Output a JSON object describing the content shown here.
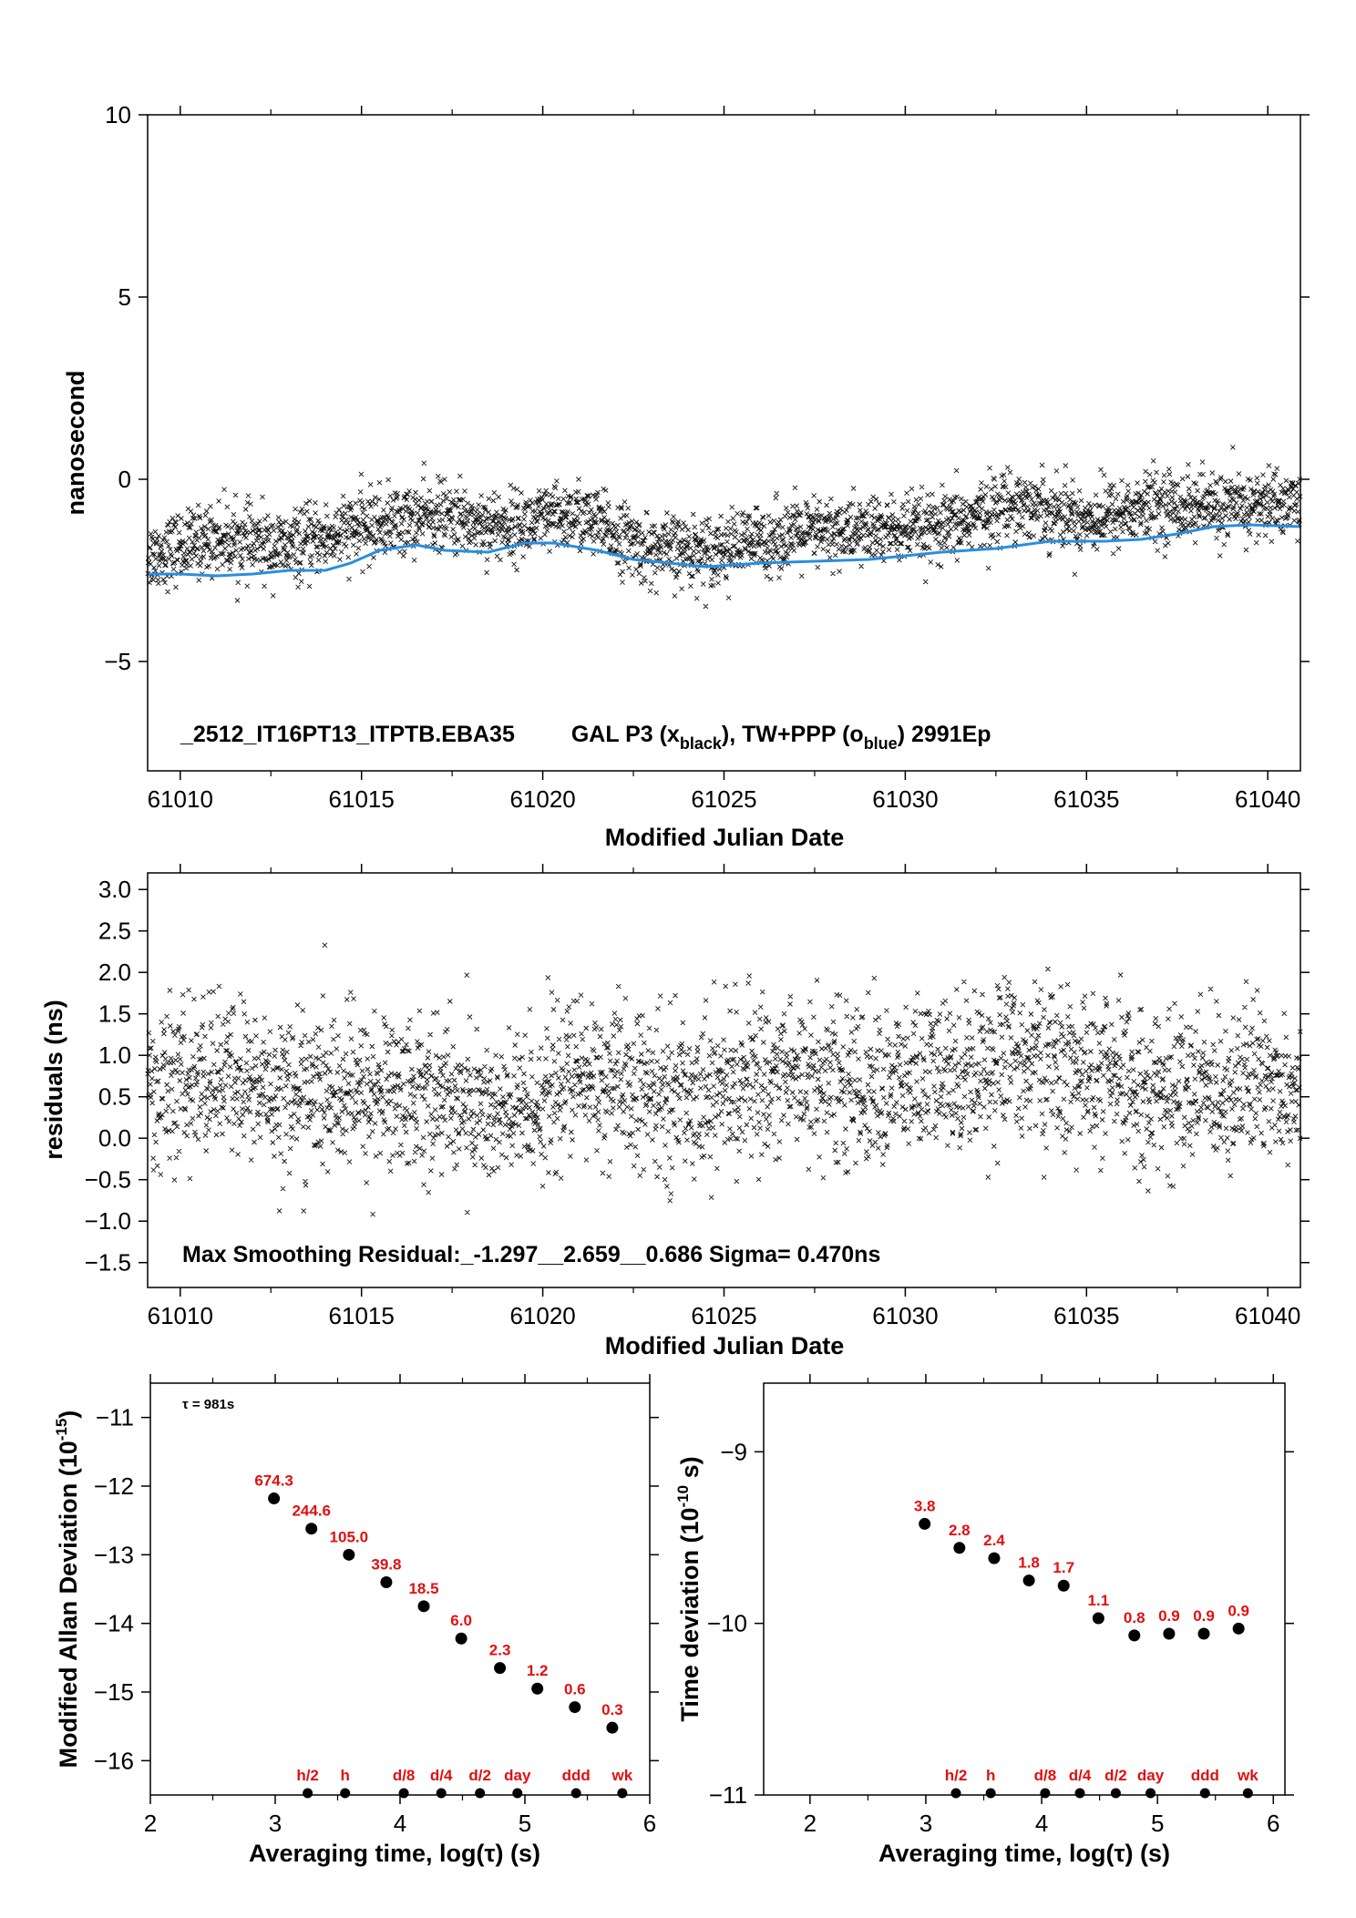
{
  "chart_data": [
    {
      "id": "time_series",
      "type": "scatter",
      "xlabel": "Modified Julian Date",
      "ylabel": "nanosecond",
      "xlim": [
        61009.1,
        61040.9
      ],
      "ylim": [
        -8.0,
        10.0
      ],
      "yticks": [
        10,
        5,
        0,
        -5
      ],
      "xticks": [
        61010,
        61015,
        61020,
        61025,
        61030,
        61035,
        61040
      ],
      "tick_labels": {
        "y": [
          "10",
          "5",
          "0",
          "−5"
        ],
        "x": [
          "61010",
          "61015",
          "61020",
          "61025",
          "61030",
          "61035",
          "61040"
        ]
      },
      "caption": {
        "id_text": "_2512_IT16PT13_ITPTB.EBA35",
        "series_a_text": "GAL P3 (x",
        "series_a_sub": "black",
        "series_b_text": "),  TW+PPP (o",
        "series_b_sub": "blue",
        "epoch_text": ")  2991Ep"
      },
      "series": [
        {
          "marker": "x",
          "color": "#111111",
          "count": 2991,
          "trend_knots": [
            [
              61009.1,
              -2.1
            ],
            [
              61011,
              -1.6
            ],
            [
              61013,
              -1.9
            ],
            [
              61015,
              -1.3
            ],
            [
              61017,
              -1.0
            ],
            [
              61019,
              -1.3
            ],
            [
              61021,
              -1.0
            ],
            [
              61023,
              -2.0
            ],
            [
              61025,
              -1.9
            ],
            [
              61027,
              -1.5
            ],
            [
              61029,
              -1.4
            ],
            [
              61031,
              -1.4
            ],
            [
              61033,
              -0.6
            ],
            [
              61035,
              -1.1
            ],
            [
              61037,
              -0.7
            ],
            [
              61039,
              -0.8
            ],
            [
              61040.9,
              -0.6
            ]
          ],
          "spread": 0.47
        },
        {
          "marker": "line",
          "color": "#2a8ee0",
          "points": [
            [
              61009.1,
              -2.6
            ],
            [
              61010,
              -2.6
            ],
            [
              61011,
              -2.65
            ],
            [
              61012,
              -2.6
            ],
            [
              61013,
              -2.5
            ],
            [
              61014,
              -2.5
            ],
            [
              61014.7,
              -2.3
            ],
            [
              61015.5,
              -1.95
            ],
            [
              61016.5,
              -1.8
            ],
            [
              61017.3,
              -1.95
            ],
            [
              61018.5,
              -2.0
            ],
            [
              61019.5,
              -1.75
            ],
            [
              61020.3,
              -1.75
            ],
            [
              61021.5,
              -1.95
            ],
            [
              61022.5,
              -2.2
            ],
            [
              61023.5,
              -2.3
            ],
            [
              61024.5,
              -2.4
            ],
            [
              61026,
              -2.3
            ],
            [
              61027.5,
              -2.25
            ],
            [
              61029,
              -2.2
            ],
            [
              61030,
              -2.1
            ],
            [
              61031,
              -2.0
            ],
            [
              61032.5,
              -1.9
            ],
            [
              61034,
              -1.7
            ],
            [
              61035.5,
              -1.7
            ],
            [
              61036.5,
              -1.65
            ],
            [
              61037.5,
              -1.5
            ],
            [
              61038.5,
              -1.3
            ],
            [
              61039.5,
              -1.25
            ],
            [
              61040.9,
              -1.3
            ]
          ]
        }
      ]
    },
    {
      "id": "residuals",
      "type": "scatter",
      "xlabel": "Modified Julian Date",
      "ylabel": "residuals (ns)",
      "xlim": [
        61009.1,
        61040.9
      ],
      "ylim": [
        -1.8,
        3.2
      ],
      "yticks": [
        3.0,
        2.5,
        2.0,
        1.5,
        1.0,
        0.5,
        0.0,
        -0.5,
        -1.0,
        -1.5
      ],
      "xticks": [
        61010,
        61015,
        61020,
        61025,
        61030,
        61035,
        61040
      ],
      "tick_labels": {
        "y": [
          "3.0",
          "2.5",
          "2.0",
          "1.5",
          "1.0",
          "0.5",
          "0.0",
          "−0.5",
          "−1.0",
          "−1.5"
        ],
        "x": [
          "61010",
          "61015",
          "61020",
          "61025",
          "61030",
          "61035",
          "61040"
        ]
      },
      "caption": "Max Smoothing Residual:_-1.297__2.659__0.686  Sigma= 0.470ns",
      "series": [
        {
          "marker": "x",
          "color": "#111111",
          "count": 2991,
          "trend_knots": [
            [
              61009.1,
              0.55
            ],
            [
              61011,
              0.75
            ],
            [
              61013,
              0.55
            ],
            [
              61015,
              0.55
            ],
            [
              61017,
              0.55
            ],
            [
              61019,
              0.25
            ],
            [
              61021,
              0.75
            ],
            [
              61023,
              0.5
            ],
            [
              61025,
              0.6
            ],
            [
              61027,
              0.8
            ],
            [
              61029,
              0.6
            ],
            [
              61031,
              0.75
            ],
            [
              61033,
              1.0
            ],
            [
              61035,
              0.75
            ],
            [
              61037,
              0.55
            ],
            [
              61039,
              0.65
            ],
            [
              61040.9,
              0.7
            ]
          ],
          "spread": 0.47,
          "max": 2.659,
          "min": -1.297,
          "mean": 0.686
        }
      ]
    },
    {
      "id": "mdev",
      "type": "scatter",
      "xlabel": "Averaging time, log(τ) (s)",
      "ylabel": "Modified Allan Deviation (10",
      "ylabel_exp": "-15",
      "ylabel_end": ")",
      "xlim": [
        2,
        6
      ],
      "ylim": [
        -16.5,
        -10.5
      ],
      "xticks": [
        2,
        3,
        4,
        5,
        6
      ],
      "yticks": [
        -11,
        -12,
        -13,
        -14,
        -15,
        -16
      ],
      "tick_labels": {
        "x": [
          "2",
          "3",
          "4",
          "5",
          "6"
        ],
        "y": [
          "−11",
          "−12",
          "−13",
          "−14",
          "−15",
          "−16"
        ]
      },
      "note": "τ = 981s",
      "points": [
        {
          "x": 2.99,
          "y": -12.18,
          "label": "674.3"
        },
        {
          "x": 3.29,
          "y": -12.62,
          "label": "244.6"
        },
        {
          "x": 3.59,
          "y": -13.0,
          "label": "105.0"
        },
        {
          "x": 3.89,
          "y": -13.4,
          "label": "39.8"
        },
        {
          "x": 4.19,
          "y": -13.75,
          "label": "18.5"
        },
        {
          "x": 4.49,
          "y": -14.22,
          "label": "6.0"
        },
        {
          "x": 4.8,
          "y": -14.65,
          "label": "2.3"
        },
        {
          "x": 5.1,
          "y": -14.95,
          "label": "1.2"
        },
        {
          "x": 5.4,
          "y": -15.22,
          "label": "0.6"
        },
        {
          "x": 5.7,
          "y": -15.52,
          "label": "0.3"
        }
      ],
      "markers": [
        {
          "x": 3.26,
          "label": "h/2"
        },
        {
          "x": 3.56,
          "label": "h"
        },
        {
          "x": 4.03,
          "label": "d/8"
        },
        {
          "x": 4.33,
          "label": "d/4"
        },
        {
          "x": 4.64,
          "label": "d/2"
        },
        {
          "x": 4.94,
          "label": "day"
        },
        {
          "x": 5.41,
          "label": "ddd"
        },
        {
          "x": 5.78,
          "label": "wk"
        }
      ]
    },
    {
      "id": "tdev",
      "type": "scatter",
      "xlabel": "Averaging time, log(τ) (s)",
      "ylabel": "Time deviation (10",
      "ylabel_exp": "-10",
      "ylabel_end": " s)",
      "xlim": [
        1.6,
        6.1
      ],
      "ylim": [
        -11.0,
        -8.6
      ],
      "xticks": [
        2,
        3,
        4,
        5,
        6
      ],
      "yticks": [
        -9,
        -10,
        -11
      ],
      "tick_labels": {
        "x": [
          "2",
          "3",
          "4",
          "5",
          "6"
        ],
        "y": [
          "−9",
          "−10",
          "−11"
        ]
      },
      "points": [
        {
          "x": 2.99,
          "y": -9.42,
          "label": "3.8"
        },
        {
          "x": 3.29,
          "y": -9.56,
          "label": "2.8"
        },
        {
          "x": 3.59,
          "y": -9.62,
          "label": "2.4"
        },
        {
          "x": 3.89,
          "y": -9.75,
          "label": "1.8"
        },
        {
          "x": 4.19,
          "y": -9.78,
          "label": "1.7"
        },
        {
          "x": 4.49,
          "y": -9.97,
          "label": "1.1"
        },
        {
          "x": 4.8,
          "y": -10.07,
          "label": "0.8"
        },
        {
          "x": 5.1,
          "y": -10.06,
          "label": "0.9"
        },
        {
          "x": 5.4,
          "y": -10.06,
          "label": "0.9"
        },
        {
          "x": 5.7,
          "y": -10.03,
          "label": "0.9"
        }
      ],
      "markers": [
        {
          "x": 3.26,
          "label": "h/2"
        },
        {
          "x": 3.56,
          "label": "h"
        },
        {
          "x": 4.03,
          "label": "d/8"
        },
        {
          "x": 4.33,
          "label": "d/4"
        },
        {
          "x": 4.64,
          "label": "d/2"
        },
        {
          "x": 4.94,
          "label": "day"
        },
        {
          "x": 5.41,
          "label": "ddd"
        },
        {
          "x": 5.78,
          "label": "wk"
        }
      ]
    }
  ]
}
